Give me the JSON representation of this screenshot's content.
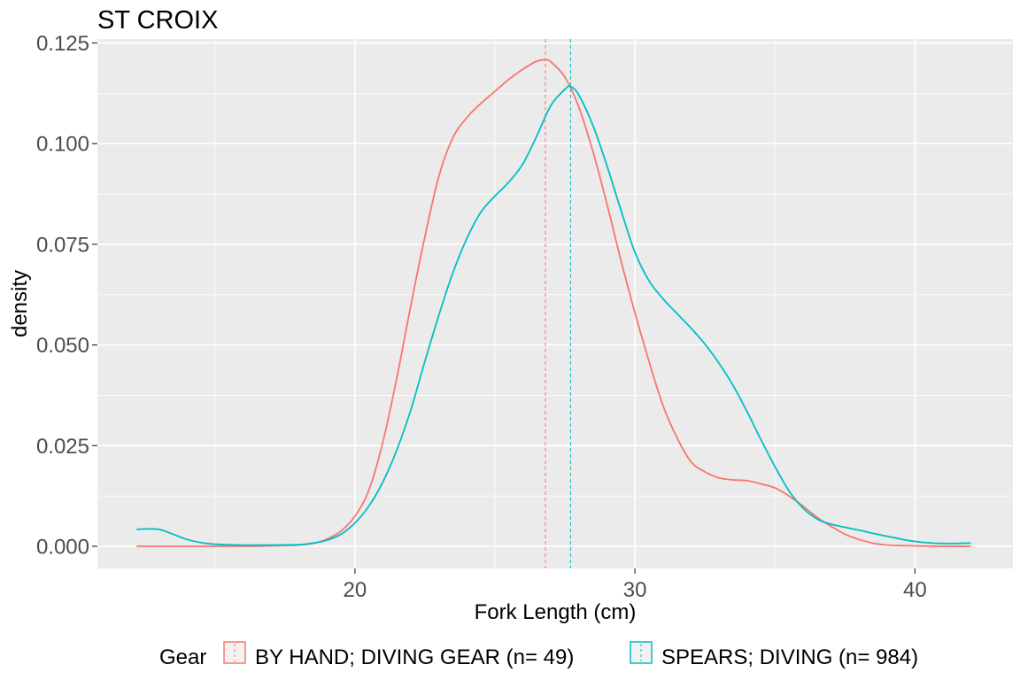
{
  "chart_data": {
    "type": "line",
    "subtype": "density",
    "title": "ST CROIX",
    "xlabel": "Fork Length (cm)",
    "ylabel": "density",
    "xlim": [
      10.8,
      43.5
    ],
    "ylim": [
      -0.0055,
      0.126
    ],
    "x_ticks": [
      20,
      30,
      40
    ],
    "x_tick_labels": [
      "20",
      "30",
      "40"
    ],
    "x_minor_ticks": [
      15,
      25,
      35
    ],
    "y_ticks": [
      0,
      0.025,
      0.05,
      0.075,
      0.1,
      0.125
    ],
    "y_tick_labels": [
      "0.000",
      "0.025",
      "0.050",
      "0.075",
      "0.100",
      "0.125"
    ],
    "grid": true,
    "legend": {
      "position": "bottom",
      "title": "Gear",
      "entries": [
        "BY HAND; DIVING GEAR (n= 49)",
        "SPEARS; DIVING (n= 984)"
      ]
    },
    "series": [
      {
        "name": "BY HAND; DIVING GEAR (n= 49)",
        "color": "#F8766D",
        "mean_line": 26.8,
        "points": [
          [
            12.2,
            0
          ],
          [
            14,
            0
          ],
          [
            16,
            0
          ],
          [
            17,
            0.0001
          ],
          [
            18,
            0.0003
          ],
          [
            18.5,
            0.0007
          ],
          [
            19,
            0.0018
          ],
          [
            19.5,
            0.0038
          ],
          [
            20,
            0.0075
          ],
          [
            20.5,
            0.014
          ],
          [
            21,
            0.026
          ],
          [
            21.5,
            0.042
          ],
          [
            22,
            0.06
          ],
          [
            22.5,
            0.077
          ],
          [
            23,
            0.092
          ],
          [
            23.5,
            0.1015
          ],
          [
            24,
            0.1065
          ],
          [
            24.5,
            0.11
          ],
          [
            25,
            0.113
          ],
          [
            25.5,
            0.116
          ],
          [
            26,
            0.1185
          ],
          [
            26.5,
            0.1205
          ],
          [
            26.8,
            0.1208
          ],
          [
            27,
            0.1203
          ],
          [
            27.5,
            0.1165
          ],
          [
            28,
            0.109
          ],
          [
            28.5,
            0.098
          ],
          [
            29,
            0.085
          ],
          [
            29.5,
            0.071
          ],
          [
            30,
            0.058
          ],
          [
            30.5,
            0.046
          ],
          [
            31,
            0.035
          ],
          [
            31.5,
            0.027
          ],
          [
            32,
            0.021
          ],
          [
            32.5,
            0.0185
          ],
          [
            33,
            0.017
          ],
          [
            33.5,
            0.0165
          ],
          [
            34,
            0.0163
          ],
          [
            34.5,
            0.0155
          ],
          [
            35,
            0.0145
          ],
          [
            35.5,
            0.0125
          ],
          [
            36,
            0.01
          ],
          [
            36.5,
            0.0072
          ],
          [
            37,
            0.005
          ],
          [
            37.5,
            0.003
          ],
          [
            38,
            0.0017
          ],
          [
            38.5,
            0.0008
          ],
          [
            39,
            0.0003
          ],
          [
            40,
            0.0001
          ],
          [
            41,
            0
          ],
          [
            42,
            0
          ]
        ]
      },
      {
        "name": "SPEARS; DIVING (n= 984)",
        "color": "#00BFC4",
        "mean_line": 27.7,
        "points": [
          [
            12.2,
            0.0042
          ],
          [
            12.5,
            0.0043
          ],
          [
            13,
            0.0042
          ],
          [
            13.5,
            0.003
          ],
          [
            14,
            0.0017
          ],
          [
            14.5,
            0.0009
          ],
          [
            15,
            0.0005
          ],
          [
            16,
            0.0003
          ],
          [
            17,
            0.0003
          ],
          [
            18,
            0.0004
          ],
          [
            18.5,
            0.0008
          ],
          [
            19,
            0.0015
          ],
          [
            19.5,
            0.003
          ],
          [
            20,
            0.0058
          ],
          [
            20.5,
            0.01
          ],
          [
            21,
            0.016
          ],
          [
            21.5,
            0.024
          ],
          [
            22,
            0.034
          ],
          [
            22.5,
            0.046
          ],
          [
            23,
            0.0575
          ],
          [
            23.5,
            0.068
          ],
          [
            24,
            0.0765
          ],
          [
            24.5,
            0.083
          ],
          [
            25,
            0.087
          ],
          [
            25.5,
            0.0905
          ],
          [
            26,
            0.095
          ],
          [
            26.5,
            0.102
          ],
          [
            27,
            0.1095
          ],
          [
            27.5,
            0.1135
          ],
          [
            27.7,
            0.1142
          ],
          [
            28,
            0.112
          ],
          [
            28.5,
            0.1045
          ],
          [
            29,
            0.0945
          ],
          [
            29.5,
            0.0835
          ],
          [
            30,
            0.073
          ],
          [
            30.5,
            0.066
          ],
          [
            31,
            0.0615
          ],
          [
            31.5,
            0.0578
          ],
          [
            32,
            0.0542
          ],
          [
            32.5,
            0.0502
          ],
          [
            33,
            0.0455
          ],
          [
            33.5,
            0.04
          ],
          [
            34,
            0.0335
          ],
          [
            34.5,
            0.0265
          ],
          [
            35,
            0.0198
          ],
          [
            35.5,
            0.0138
          ],
          [
            36,
            0.0095
          ],
          [
            36.5,
            0.0068
          ],
          [
            37,
            0.0055
          ],
          [
            38,
            0.004
          ],
          [
            39,
            0.0025
          ],
          [
            40,
            0.0012
          ],
          [
            41,
            0.0007
          ],
          [
            42,
            0.0008
          ]
        ]
      }
    ]
  }
}
